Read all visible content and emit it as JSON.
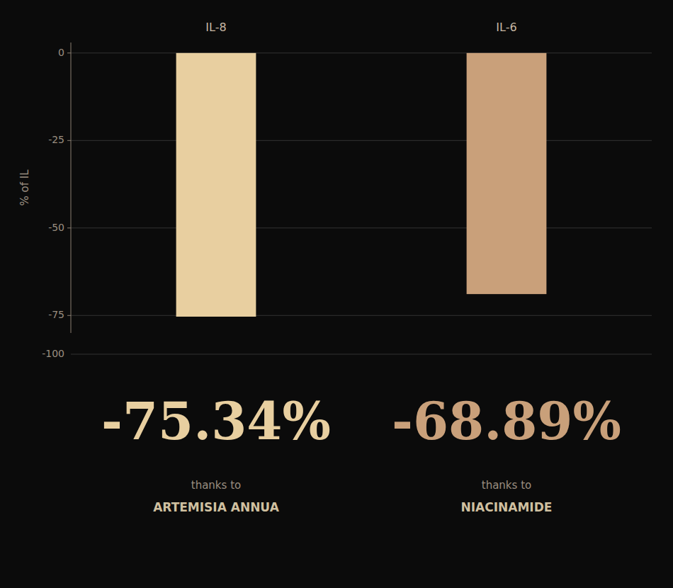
{
  "chart_data": {
    "type": "bar",
    "ylabel": "% of IL",
    "categories": [
      "IL-8",
      "IL-6"
    ],
    "values": [
      -75.34,
      -68.89
    ],
    "colors": [
      "#e8cfa0",
      "#c9a07a"
    ],
    "ylim": [
      -80,
      3
    ],
    "yticks": [
      0,
      -25,
      -50,
      -75
    ],
    "grid": true,
    "data_labels": true,
    "value_labels": [
      "-75.34%",
      "-68.89%"
    ],
    "annotations": [
      {
        "text": "-100"
      },
      {
        "text": "thanks to",
        "x": "IL-8"
      },
      {
        "text": "thanks to",
        "x": "IL-6"
      },
      {
        "text": "ARTEMISIA ANNUA",
        "x": "IL-8"
      },
      {
        "text": "NIACINAMIDE",
        "x": "IL-6"
      }
    ]
  }
}
